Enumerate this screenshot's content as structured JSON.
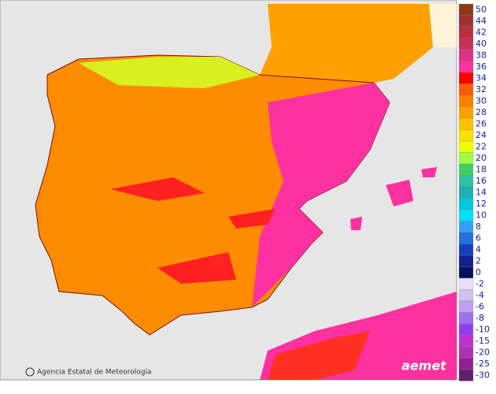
{
  "credit": "Agencia Estatal de Meteorología",
  "logo": "aemet",
  "legend": {
    "items": [
      {
        "label": "50",
        "color": "#8b3a0f"
      },
      {
        "label": "44",
        "color": "#a0302a"
      },
      {
        "label": "42",
        "color": "#b83040"
      },
      {
        "label": "40",
        "color": "#c83058"
      },
      {
        "label": "38",
        "color": "#e0308a"
      },
      {
        "label": "36",
        "color": "#ff30a0"
      },
      {
        "label": "34",
        "color": "#ff0000"
      },
      {
        "label": "32",
        "color": "#ff5a00"
      },
      {
        "label": "30",
        "color": "#ff8000"
      },
      {
        "label": "28",
        "color": "#ffa000"
      },
      {
        "label": "26",
        "color": "#ffc000"
      },
      {
        "label": "24",
        "color": "#ffe000"
      },
      {
        "label": "22",
        "color": "#f0ff00"
      },
      {
        "label": "20",
        "color": "#a0ff40"
      },
      {
        "label": "18",
        "color": "#40d060"
      },
      {
        "label": "16",
        "color": "#30c0a0"
      },
      {
        "label": "14",
        "color": "#20b0b0"
      },
      {
        "label": "12",
        "color": "#00c8e0"
      },
      {
        "label": "10",
        "color": "#00e0ff"
      },
      {
        "label": "8",
        "color": "#30a0ff"
      },
      {
        "label": "6",
        "color": "#2070e0"
      },
      {
        "label": "4",
        "color": "#1040c0"
      },
      {
        "label": "2",
        "color": "#102090"
      },
      {
        "label": "0",
        "color": "#081060"
      },
      {
        "label": "-2",
        "color": "#e8e0f8"
      },
      {
        "label": "-4",
        "color": "#d0c0f0"
      },
      {
        "label": "-6",
        "color": "#c0a0f0"
      },
      {
        "label": "-8",
        "color": "#a070f0"
      },
      {
        "label": "-10",
        "color": "#9040f0"
      },
      {
        "label": "-15",
        "color": "#c030d0"
      },
      {
        "label": "-20",
        "color": "#b030b0"
      },
      {
        "label": "-25",
        "color": "#902090"
      },
      {
        "label": "-30",
        "color": "#602070"
      }
    ]
  }
}
